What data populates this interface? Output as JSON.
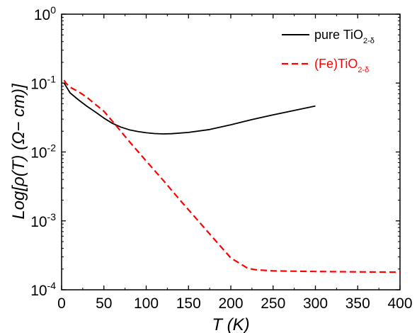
{
  "chart_data": {
    "type": "line",
    "xlabel": "T (K)",
    "ylabel": "Log[ρ(T) (Ω− cm)]",
    "xlim": [
      0,
      400
    ],
    "ylim": [
      0.0001,
      1
    ],
    "yscale": "log",
    "x_ticks": [
      0,
      50,
      100,
      150,
      200,
      250,
      300,
      350,
      400
    ],
    "y_ticks": [
      {
        "value": 1,
        "base": "10",
        "exp": "0"
      },
      {
        "value": 0.1,
        "base": "10",
        "exp": "-1"
      },
      {
        "value": 0.01,
        "base": "10",
        "exp": "-2"
      },
      {
        "value": 0.001,
        "base": "10",
        "exp": "-3"
      },
      {
        "value": 0.0001,
        "base": "10",
        "exp": "-4"
      }
    ],
    "grid": false,
    "legend_position": "top-right",
    "series": [
      {
        "name": "pure TiO2-δ",
        "name_main": "pure TiO",
        "name_sub": "2-δ",
        "color": "#000000",
        "dash": "solid",
        "x": [
          3,
          10,
          20,
          30,
          40,
          50,
          60,
          70,
          80,
          90,
          100,
          110,
          120,
          130,
          150,
          175,
          200,
          225,
          250,
          275,
          300
        ],
        "y": [
          0.1,
          0.072,
          0.057,
          0.046,
          0.038,
          0.031,
          0.026,
          0.023,
          0.021,
          0.0198,
          0.019,
          0.0185,
          0.0183,
          0.0184,
          0.0192,
          0.0212,
          0.0248,
          0.0296,
          0.0346,
          0.04,
          0.0465
        ]
      },
      {
        "name": "(Fe)TiO2-δ",
        "name_main": "(Fe)TiO",
        "name_sub": "2-δ",
        "color": "#ff0000",
        "dash": "dashed",
        "x": [
          3,
          5,
          10,
          20,
          30,
          40,
          50,
          60,
          70,
          80,
          100,
          120,
          140,
          160,
          180,
          200,
          220,
          230,
          250,
          300,
          350,
          400
        ],
        "y": [
          0.11,
          0.1,
          0.087,
          0.075,
          0.062,
          0.049,
          0.039,
          0.028,
          0.02,
          0.0142,
          0.0074,
          0.0039,
          0.002,
          0.00105,
          0.00055,
          0.00029,
          0.000205,
          0.000195,
          0.000188,
          0.000184,
          0.000182,
          0.00018
        ]
      }
    ]
  }
}
